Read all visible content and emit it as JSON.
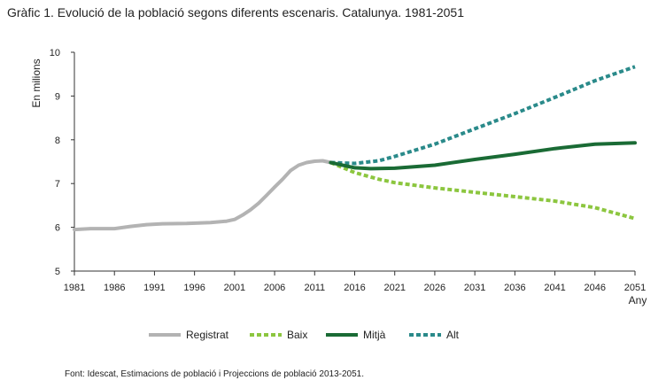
{
  "title": "Gràfic 1. Evolució de la població segons diferents escenaris. Catalunya. 1981-2051",
  "source": "Font: Idescat, Estimacions de població i Projeccions de població 2013-2051.",
  "chart_data": {
    "type": "line",
    "ylabel": "En milions",
    "xlabel": "Any",
    "xlim": [
      1981,
      2051
    ],
    "ylim": [
      5,
      10
    ],
    "x_ticks": [
      "1981",
      "1986",
      "1991",
      "1996",
      "2001",
      "2006",
      "2011",
      "2016",
      "2021",
      "2026",
      "2031",
      "2036",
      "2041",
      "2046",
      "2051"
    ],
    "y_ticks": [
      "5",
      "6",
      "7",
      "8",
      "9",
      "10"
    ],
    "grid": false,
    "legend_position": "bottom",
    "series": [
      {
        "name": "Registrat",
        "color": "#b3b3b3",
        "style": "solid",
        "x": [
          1981,
          1983,
          1986,
          1988,
          1990,
          1992,
          1995,
          1998,
          2000,
          2001,
          2002,
          2003,
          2004,
          2005,
          2006,
          2007,
          2008,
          2009,
          2010,
          2011,
          2012,
          2013
        ],
        "values": [
          5.95,
          5.97,
          5.97,
          6.02,
          6.06,
          6.08,
          6.09,
          6.11,
          6.14,
          6.18,
          6.28,
          6.4,
          6.55,
          6.73,
          6.92,
          7.1,
          7.3,
          7.42,
          7.48,
          7.51,
          7.52,
          7.48
        ]
      },
      {
        "name": "Baix",
        "color": "#8cc63f",
        "style": "dashed",
        "x": [
          2013,
          2016,
          2019,
          2021,
          2026,
          2031,
          2036,
          2041,
          2046,
          2051
        ],
        "values": [
          7.48,
          7.25,
          7.1,
          7.02,
          6.9,
          6.8,
          6.7,
          6.6,
          6.45,
          6.2
        ]
      },
      {
        "name": "Mitjà",
        "color": "#1a6b35",
        "style": "solid",
        "x": [
          2013,
          2016,
          2018,
          2021,
          2026,
          2031,
          2036,
          2041,
          2046,
          2051
        ],
        "values": [
          7.48,
          7.36,
          7.34,
          7.35,
          7.42,
          7.55,
          7.67,
          7.8,
          7.9,
          7.93
        ]
      },
      {
        "name": "Alt",
        "color": "#2a8a8a",
        "style": "dashed",
        "x": [
          2013,
          2016,
          2019,
          2021,
          2026,
          2031,
          2036,
          2041,
          2046,
          2051
        ],
        "values": [
          7.48,
          7.46,
          7.52,
          7.62,
          7.9,
          8.25,
          8.6,
          8.97,
          9.35,
          9.67
        ]
      }
    ]
  }
}
